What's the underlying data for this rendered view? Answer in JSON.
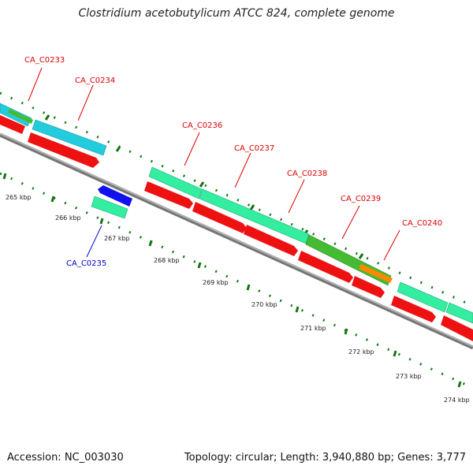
{
  "title": "Clostridium acetobutylicum ATCC 824, complete genome",
  "footer": {
    "accession": "Accession: NC_003030",
    "stats": "Topology: circular; Length: 3,940,880 bp; Genes: 3,777"
  },
  "colors": {
    "red_label": "#dd0000",
    "blue_label": "#0000cc",
    "forward_cds": "#ee1111",
    "teal_orf": "#22ccdd",
    "mint_orf": "#33eea0",
    "green_orf": "#44bb33",
    "orange_orf": "#ff8800",
    "blue_orf": "#1111ee",
    "backbone": "#888888",
    "tick_green": "#117711"
  },
  "gene_labels": [
    {
      "id": "CA_C0233",
      "color": "red"
    },
    {
      "id": "CA_C0234",
      "color": "red"
    },
    {
      "id": "CA_C0236",
      "color": "red"
    },
    {
      "id": "CA_C0237",
      "color": "red"
    },
    {
      "id": "CA_C0238",
      "color": "red"
    },
    {
      "id": "CA_C0239",
      "color": "red"
    },
    {
      "id": "CA_C0240",
      "color": "red"
    },
    {
      "id": "CA_C0235",
      "color": "blue"
    }
  ],
  "ticks": [
    "265 kbp",
    "266 kbp",
    "267 kbp",
    "268 kbp",
    "269 kbp",
    "270 kbp",
    "271 kbp",
    "272 kbp",
    "273 kbp",
    "274 kbp"
  ]
}
